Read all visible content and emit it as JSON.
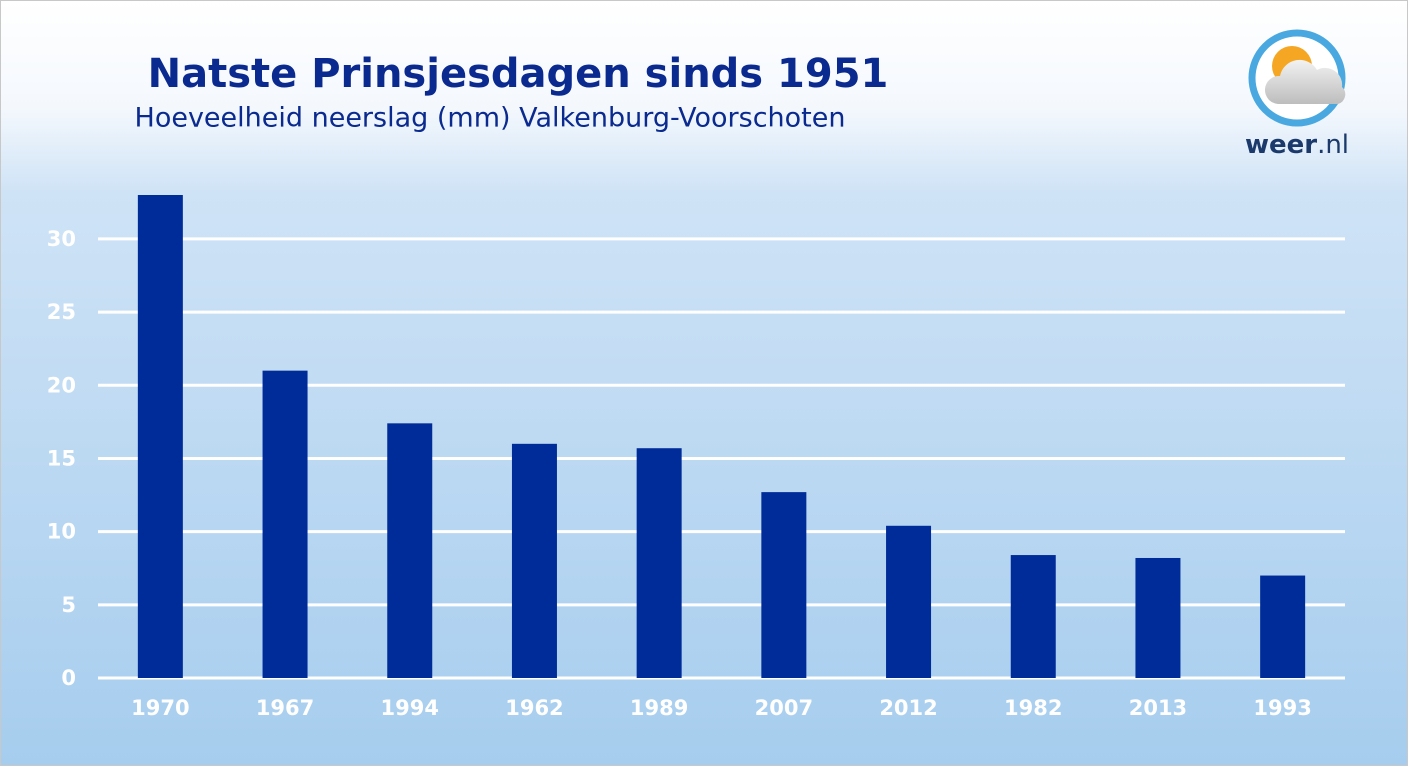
{
  "chart_data": {
    "type": "bar",
    "title": "Natste Prinsjesdagen sinds 1951",
    "subtitle": "Hoeveelheid neerslag (mm) Valkenburg-Voorschoten",
    "categories": [
      "1970",
      "1967",
      "1994",
      "1962",
      "1989",
      "2007",
      "2012",
      "1982",
      "2013",
      "1993"
    ],
    "values": [
      33,
      21,
      17.4,
      16,
      15.7,
      12.7,
      10.4,
      8.4,
      8.2,
      7
    ],
    "color": "#002c99",
    "ylim": [
      0,
      33
    ],
    "yticks": [
      0,
      5,
      10,
      15,
      20,
      25,
      30
    ],
    "grid": true
  },
  "logo": {
    "name": "weer",
    "suffix": ".nl"
  }
}
